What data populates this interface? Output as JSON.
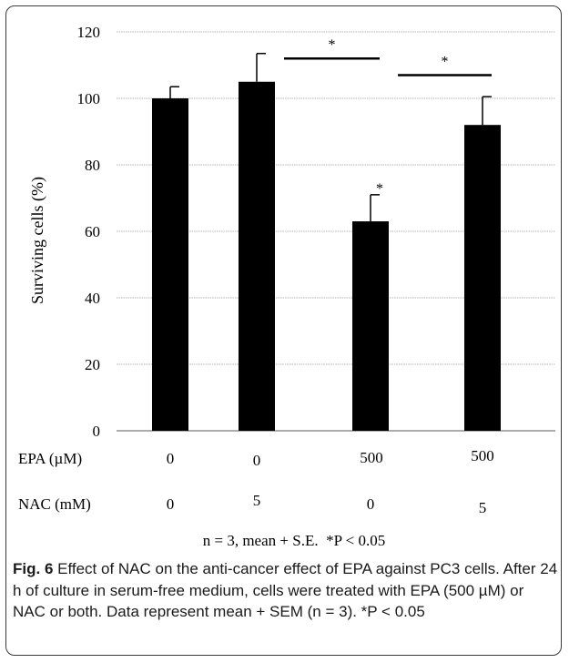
{
  "chart_data": {
    "type": "bar",
    "ylabel": "Surviving cells (%)",
    "ylim": [
      0,
      120
    ],
    "yticks": [
      0,
      20,
      40,
      60,
      80,
      100,
      120
    ],
    "grid": true,
    "bar_color": "#000000",
    "gridline_color": "#9a9a9a",
    "values": [
      100,
      105,
      63,
      92
    ],
    "errors": [
      3.5,
      8.5,
      8,
      8.5
    ],
    "bar_annotations": [
      "",
      "",
      "*",
      ""
    ],
    "conditions": [
      {
        "label": "EPA (µM)",
        "values": [
          "0",
          "0",
          "500",
          "500"
        ]
      },
      {
        "label": "NAC (mM)",
        "values": [
          "0",
          "5",
          "0",
          "5"
        ]
      }
    ],
    "significance": [
      {
        "from": 1,
        "to": 2,
        "y": 112,
        "label": "*"
      },
      {
        "from": 2,
        "to": 3,
        "y": 107,
        "label": "*"
      }
    ],
    "note": "n = 3, mean + S.E.  *P < 0.05"
  },
  "caption": {
    "lead": "Fig. 6",
    "text": " Effect of NAC on the anti-cancer effect of EPA against PC3 cells. After 24 h of culture in serum-free medium, cells were treated with EPA (500 µM) or NAC or both. Data represent mean + SEM (n = 3). *P < 0.05"
  }
}
